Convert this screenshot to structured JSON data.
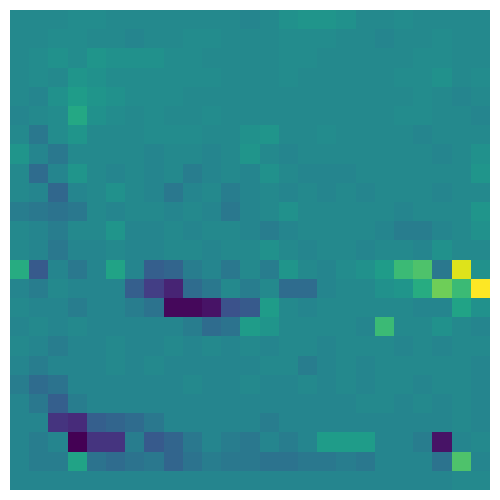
{
  "chart_data": {
    "type": "heatmap",
    "color": "Viridis",
    "tick_labels": false,
    "grid": false,
    "cells": [
      [
        0.47,
        0.47,
        0.47,
        0.48,
        0.48,
        0.47,
        0.47,
        0.47,
        0.47,
        0.47,
        0.47,
        0.47,
        0.45,
        0.47,
        0.5,
        0.52,
        0.52,
        0.5,
        0.47,
        0.47,
        0.48,
        0.47,
        0.47,
        0.47,
        0.47
      ],
      [
        0.47,
        0.47,
        0.48,
        0.48,
        0.47,
        0.47,
        0.45,
        0.47,
        0.47,
        0.48,
        0.48,
        0.47,
        0.47,
        0.47,
        0.48,
        0.48,
        0.48,
        0.47,
        0.47,
        0.45,
        0.47,
        0.47,
        0.48,
        0.47,
        0.47
      ],
      [
        0.47,
        0.48,
        0.5,
        0.48,
        0.52,
        0.5,
        0.5,
        0.5,
        0.48,
        0.48,
        0.47,
        0.47,
        0.47,
        0.47,
        0.48,
        0.48,
        0.47,
        0.47,
        0.47,
        0.47,
        0.47,
        0.48,
        0.48,
        0.47,
        0.47
      ],
      [
        0.47,
        0.48,
        0.47,
        0.52,
        0.5,
        0.48,
        0.48,
        0.48,
        0.48,
        0.48,
        0.48,
        0.47,
        0.47,
        0.47,
        0.48,
        0.47,
        0.47,
        0.47,
        0.47,
        0.47,
        0.48,
        0.48,
        0.5,
        0.47,
        0.48
      ],
      [
        0.47,
        0.45,
        0.5,
        0.55,
        0.52,
        0.5,
        0.48,
        0.48,
        0.48,
        0.47,
        0.47,
        0.47,
        0.47,
        0.47,
        0.47,
        0.47,
        0.47,
        0.47,
        0.47,
        0.47,
        0.47,
        0.48,
        0.47,
        0.45,
        0.47
      ],
      [
        0.45,
        0.47,
        0.48,
        0.6,
        0.5,
        0.48,
        0.47,
        0.48,
        0.47,
        0.47,
        0.48,
        0.47,
        0.47,
        0.47,
        0.47,
        0.47,
        0.47,
        0.47,
        0.47,
        0.47,
        0.48,
        0.48,
        0.47,
        0.47,
        0.45
      ],
      [
        0.47,
        0.4,
        0.48,
        0.52,
        0.47,
        0.47,
        0.47,
        0.48,
        0.48,
        0.48,
        0.47,
        0.47,
        0.5,
        0.52,
        0.47,
        0.47,
        0.48,
        0.47,
        0.47,
        0.47,
        0.47,
        0.45,
        0.47,
        0.47,
        0.47
      ],
      [
        0.52,
        0.45,
        0.4,
        0.47,
        0.47,
        0.47,
        0.47,
        0.45,
        0.47,
        0.47,
        0.45,
        0.47,
        0.52,
        0.47,
        0.45,
        0.47,
        0.47,
        0.47,
        0.47,
        0.47,
        0.47,
        0.47,
        0.45,
        0.47,
        0.5
      ],
      [
        0.47,
        0.35,
        0.45,
        0.52,
        0.47,
        0.45,
        0.47,
        0.45,
        0.47,
        0.42,
        0.45,
        0.47,
        0.45,
        0.5,
        0.47,
        0.45,
        0.45,
        0.45,
        0.47,
        0.47,
        0.47,
        0.47,
        0.47,
        0.47,
        0.52
      ],
      [
        0.47,
        0.45,
        0.33,
        0.45,
        0.47,
        0.5,
        0.47,
        0.45,
        0.4,
        0.45,
        0.47,
        0.42,
        0.45,
        0.47,
        0.45,
        0.47,
        0.45,
        0.47,
        0.45,
        0.47,
        0.47,
        0.47,
        0.45,
        0.47,
        0.47
      ],
      [
        0.42,
        0.4,
        0.38,
        0.4,
        0.47,
        0.45,
        0.47,
        0.47,
        0.45,
        0.47,
        0.45,
        0.4,
        0.45,
        0.47,
        0.5,
        0.47,
        0.47,
        0.47,
        0.47,
        0.47,
        0.45,
        0.47,
        0.47,
        0.47,
        0.52
      ],
      [
        0.47,
        0.45,
        0.42,
        0.47,
        0.47,
        0.52,
        0.45,
        0.45,
        0.47,
        0.45,
        0.47,
        0.47,
        0.45,
        0.42,
        0.45,
        0.47,
        0.47,
        0.47,
        0.47,
        0.45,
        0.42,
        0.42,
        0.45,
        0.47,
        0.5
      ],
      [
        0.47,
        0.45,
        0.4,
        0.45,
        0.45,
        0.47,
        0.45,
        0.45,
        0.47,
        0.47,
        0.45,
        0.47,
        0.47,
        0.5,
        0.47,
        0.45,
        0.47,
        0.47,
        0.45,
        0.47,
        0.47,
        0.45,
        0.5,
        0.47,
        0.47
      ],
      [
        0.62,
        0.28,
        0.45,
        0.4,
        0.45,
        0.58,
        0.45,
        0.3,
        0.32,
        0.42,
        0.45,
        0.4,
        0.47,
        0.42,
        0.52,
        0.47,
        0.45,
        0.48,
        0.5,
        0.55,
        0.68,
        0.72,
        0.4,
        0.95,
        0.5
      ],
      [
        0.45,
        0.42,
        0.47,
        0.45,
        0.45,
        0.45,
        0.3,
        0.18,
        0.1,
        0.35,
        0.4,
        0.47,
        0.42,
        0.47,
        0.35,
        0.35,
        0.45,
        0.47,
        0.47,
        0.5,
        0.52,
        0.62,
        0.78,
        0.68,
        1.0
      ],
      [
        0.47,
        0.45,
        0.45,
        0.42,
        0.45,
        0.45,
        0.42,
        0.38,
        0.02,
        0.02,
        0.05,
        0.25,
        0.28,
        0.55,
        0.47,
        0.45,
        0.47,
        0.47,
        0.47,
        0.47,
        0.47,
        0.45,
        0.45,
        0.58,
        0.5
      ],
      [
        0.45,
        0.47,
        0.45,
        0.47,
        0.45,
        0.45,
        0.45,
        0.45,
        0.45,
        0.42,
        0.35,
        0.38,
        0.55,
        0.52,
        0.47,
        0.47,
        0.47,
        0.47,
        0.45,
        0.68,
        0.47,
        0.47,
        0.5,
        0.47,
        0.45
      ],
      [
        0.47,
        0.45,
        0.42,
        0.45,
        0.45,
        0.47,
        0.45,
        0.45,
        0.47,
        0.45,
        0.47,
        0.45,
        0.47,
        0.45,
        0.47,
        0.47,
        0.45,
        0.47,
        0.47,
        0.47,
        0.45,
        0.47,
        0.45,
        0.47,
        0.47
      ],
      [
        0.45,
        0.42,
        0.45,
        0.45,
        0.45,
        0.47,
        0.45,
        0.47,
        0.45,
        0.45,
        0.45,
        0.45,
        0.45,
        0.47,
        0.47,
        0.42,
        0.45,
        0.47,
        0.45,
        0.47,
        0.47,
        0.47,
        0.47,
        0.47,
        0.45
      ],
      [
        0.42,
        0.35,
        0.38,
        0.45,
        0.45,
        0.45,
        0.45,
        0.45,
        0.45,
        0.47,
        0.45,
        0.45,
        0.47,
        0.45,
        0.45,
        0.47,
        0.45,
        0.47,
        0.45,
        0.47,
        0.47,
        0.45,
        0.47,
        0.47,
        0.45
      ],
      [
        0.45,
        0.4,
        0.3,
        0.42,
        0.45,
        0.45,
        0.45,
        0.45,
        0.45,
        0.45,
        0.45,
        0.45,
        0.45,
        0.45,
        0.45,
        0.45,
        0.45,
        0.45,
        0.47,
        0.47,
        0.45,
        0.47,
        0.45,
        0.47,
        0.45
      ],
      [
        0.45,
        0.45,
        0.15,
        0.12,
        0.3,
        0.32,
        0.35,
        0.4,
        0.45,
        0.45,
        0.45,
        0.45,
        0.45,
        0.42,
        0.45,
        0.45,
        0.45,
        0.45,
        0.45,
        0.45,
        0.45,
        0.45,
        0.45,
        0.47,
        0.45
      ],
      [
        0.45,
        0.42,
        0.45,
        0.0,
        0.15,
        0.15,
        0.42,
        0.28,
        0.32,
        0.4,
        0.45,
        0.42,
        0.4,
        0.45,
        0.42,
        0.45,
        0.55,
        0.55,
        0.55,
        0.45,
        0.45,
        0.42,
        0.05,
        0.45,
        0.47
      ],
      [
        0.45,
        0.42,
        0.42,
        0.58,
        0.38,
        0.35,
        0.38,
        0.4,
        0.32,
        0.38,
        0.42,
        0.4,
        0.4,
        0.38,
        0.38,
        0.4,
        0.4,
        0.42,
        0.4,
        0.45,
        0.45,
        0.45,
        0.38,
        0.72,
        0.45
      ],
      [
        0.45,
        0.45,
        0.45,
        0.45,
        0.45,
        0.45,
        0.45,
        0.45,
        0.45,
        0.45,
        0.45,
        0.45,
        0.45,
        0.45,
        0.45,
        0.45,
        0.45,
        0.45,
        0.45,
        0.45,
        0.45,
        0.45,
        0.45,
        0.47,
        0.47
      ]
    ]
  }
}
